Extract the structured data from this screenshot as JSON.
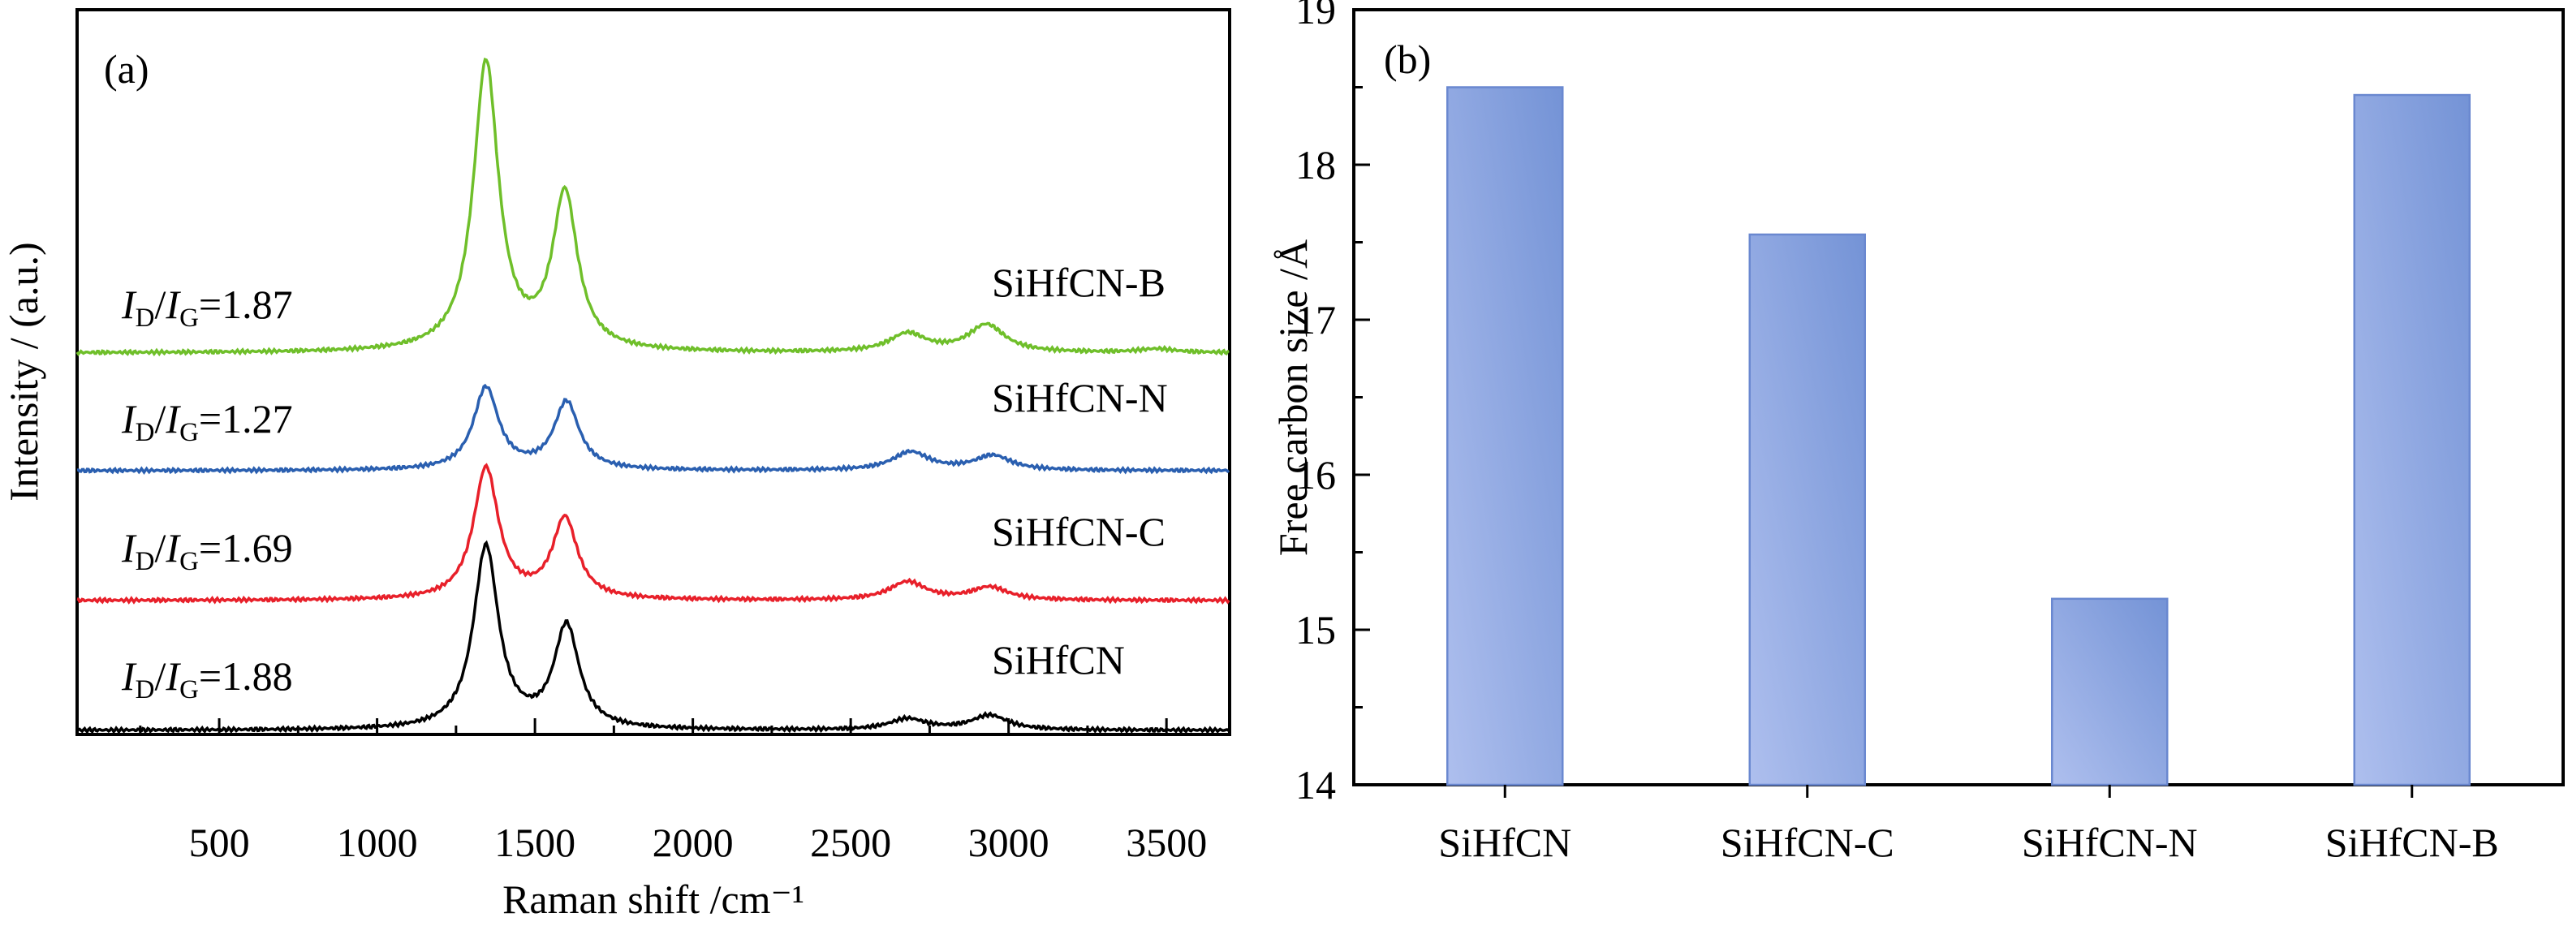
{
  "chart_data": [
    {
      "type": "line",
      "panel_label": "(a)",
      "xlabel": "Raman shift /cm⁻¹",
      "ylabel": "Intensity / (a.u.)",
      "xlim": [
        50,
        3700
      ],
      "xticks": [
        500,
        1000,
        1500,
        2000,
        2500,
        3000,
        3500
      ],
      "yticks_labeled": false,
      "series": [
        {
          "name": "SiHfCN",
          "color": "#000000",
          "ratio": {
            "num": "I",
            "num_sub": "D",
            "den": "I",
            "den_sub": "G",
            "value": "=1.88"
          },
          "peaks": [
            {
              "x": 1345,
              "height": 1.0
            },
            {
              "x": 1600,
              "height": 0.56
            },
            {
              "x": 2680,
              "height": 0.06
            },
            {
              "x": 2940,
              "height": 0.08
            }
          ]
        },
        {
          "name": "SiHfCN-C",
          "color": "#e8202a",
          "ratio": {
            "num": "I",
            "num_sub": "D",
            "den": "I",
            "den_sub": "G",
            "value": "=1.69"
          },
          "peaks": [
            {
              "x": 1345,
              "height": 0.72
            },
            {
              "x": 1595,
              "height": 0.44
            },
            {
              "x": 2680,
              "height": 0.1
            },
            {
              "x": 2940,
              "height": 0.07
            }
          ]
        },
        {
          "name": "SiHfCN-N",
          "color": "#2a5fb0",
          "ratio": {
            "num": "I",
            "num_sub": "D",
            "den": "I",
            "den_sub": "G",
            "value": "=1.27"
          },
          "peaks": [
            {
              "x": 1345,
              "height": 0.45
            },
            {
              "x": 1600,
              "height": 0.37
            },
            {
              "x": 2690,
              "height": 0.1
            },
            {
              "x": 2950,
              "height": 0.08
            }
          ]
        },
        {
          "name": "SiHfCN-B",
          "color": "#6fbf2a",
          "ratio": {
            "num": "I",
            "num_sub": "D",
            "den": "I",
            "den_sub": "G",
            "value": "=1.87"
          },
          "peaks": [
            {
              "x": 1345,
              "height": 1.58
            },
            {
              "x": 1595,
              "height": 0.85
            },
            {
              "x": 2680,
              "height": 0.1
            },
            {
              "x": 2930,
              "height": 0.15
            },
            {
              "x": 3470,
              "height": 0.02
            }
          ]
        }
      ]
    },
    {
      "type": "bar",
      "panel_label": "(b)",
      "categories": [
        "SiHfCN",
        "SiHfCN-C",
        "SiHfCN-N",
        "SiHfCN-B"
      ],
      "values": [
        18.5,
        17.55,
        15.2,
        18.45
      ],
      "xlabel": "",
      "ylabel": "Free carbon size /Å",
      "ylim": [
        14,
        19
      ],
      "yticks": [
        14,
        15,
        16,
        17,
        18,
        19
      ],
      "bar_color": "#8fa8e0",
      "bar_edge": "#6a88d0"
    }
  ]
}
